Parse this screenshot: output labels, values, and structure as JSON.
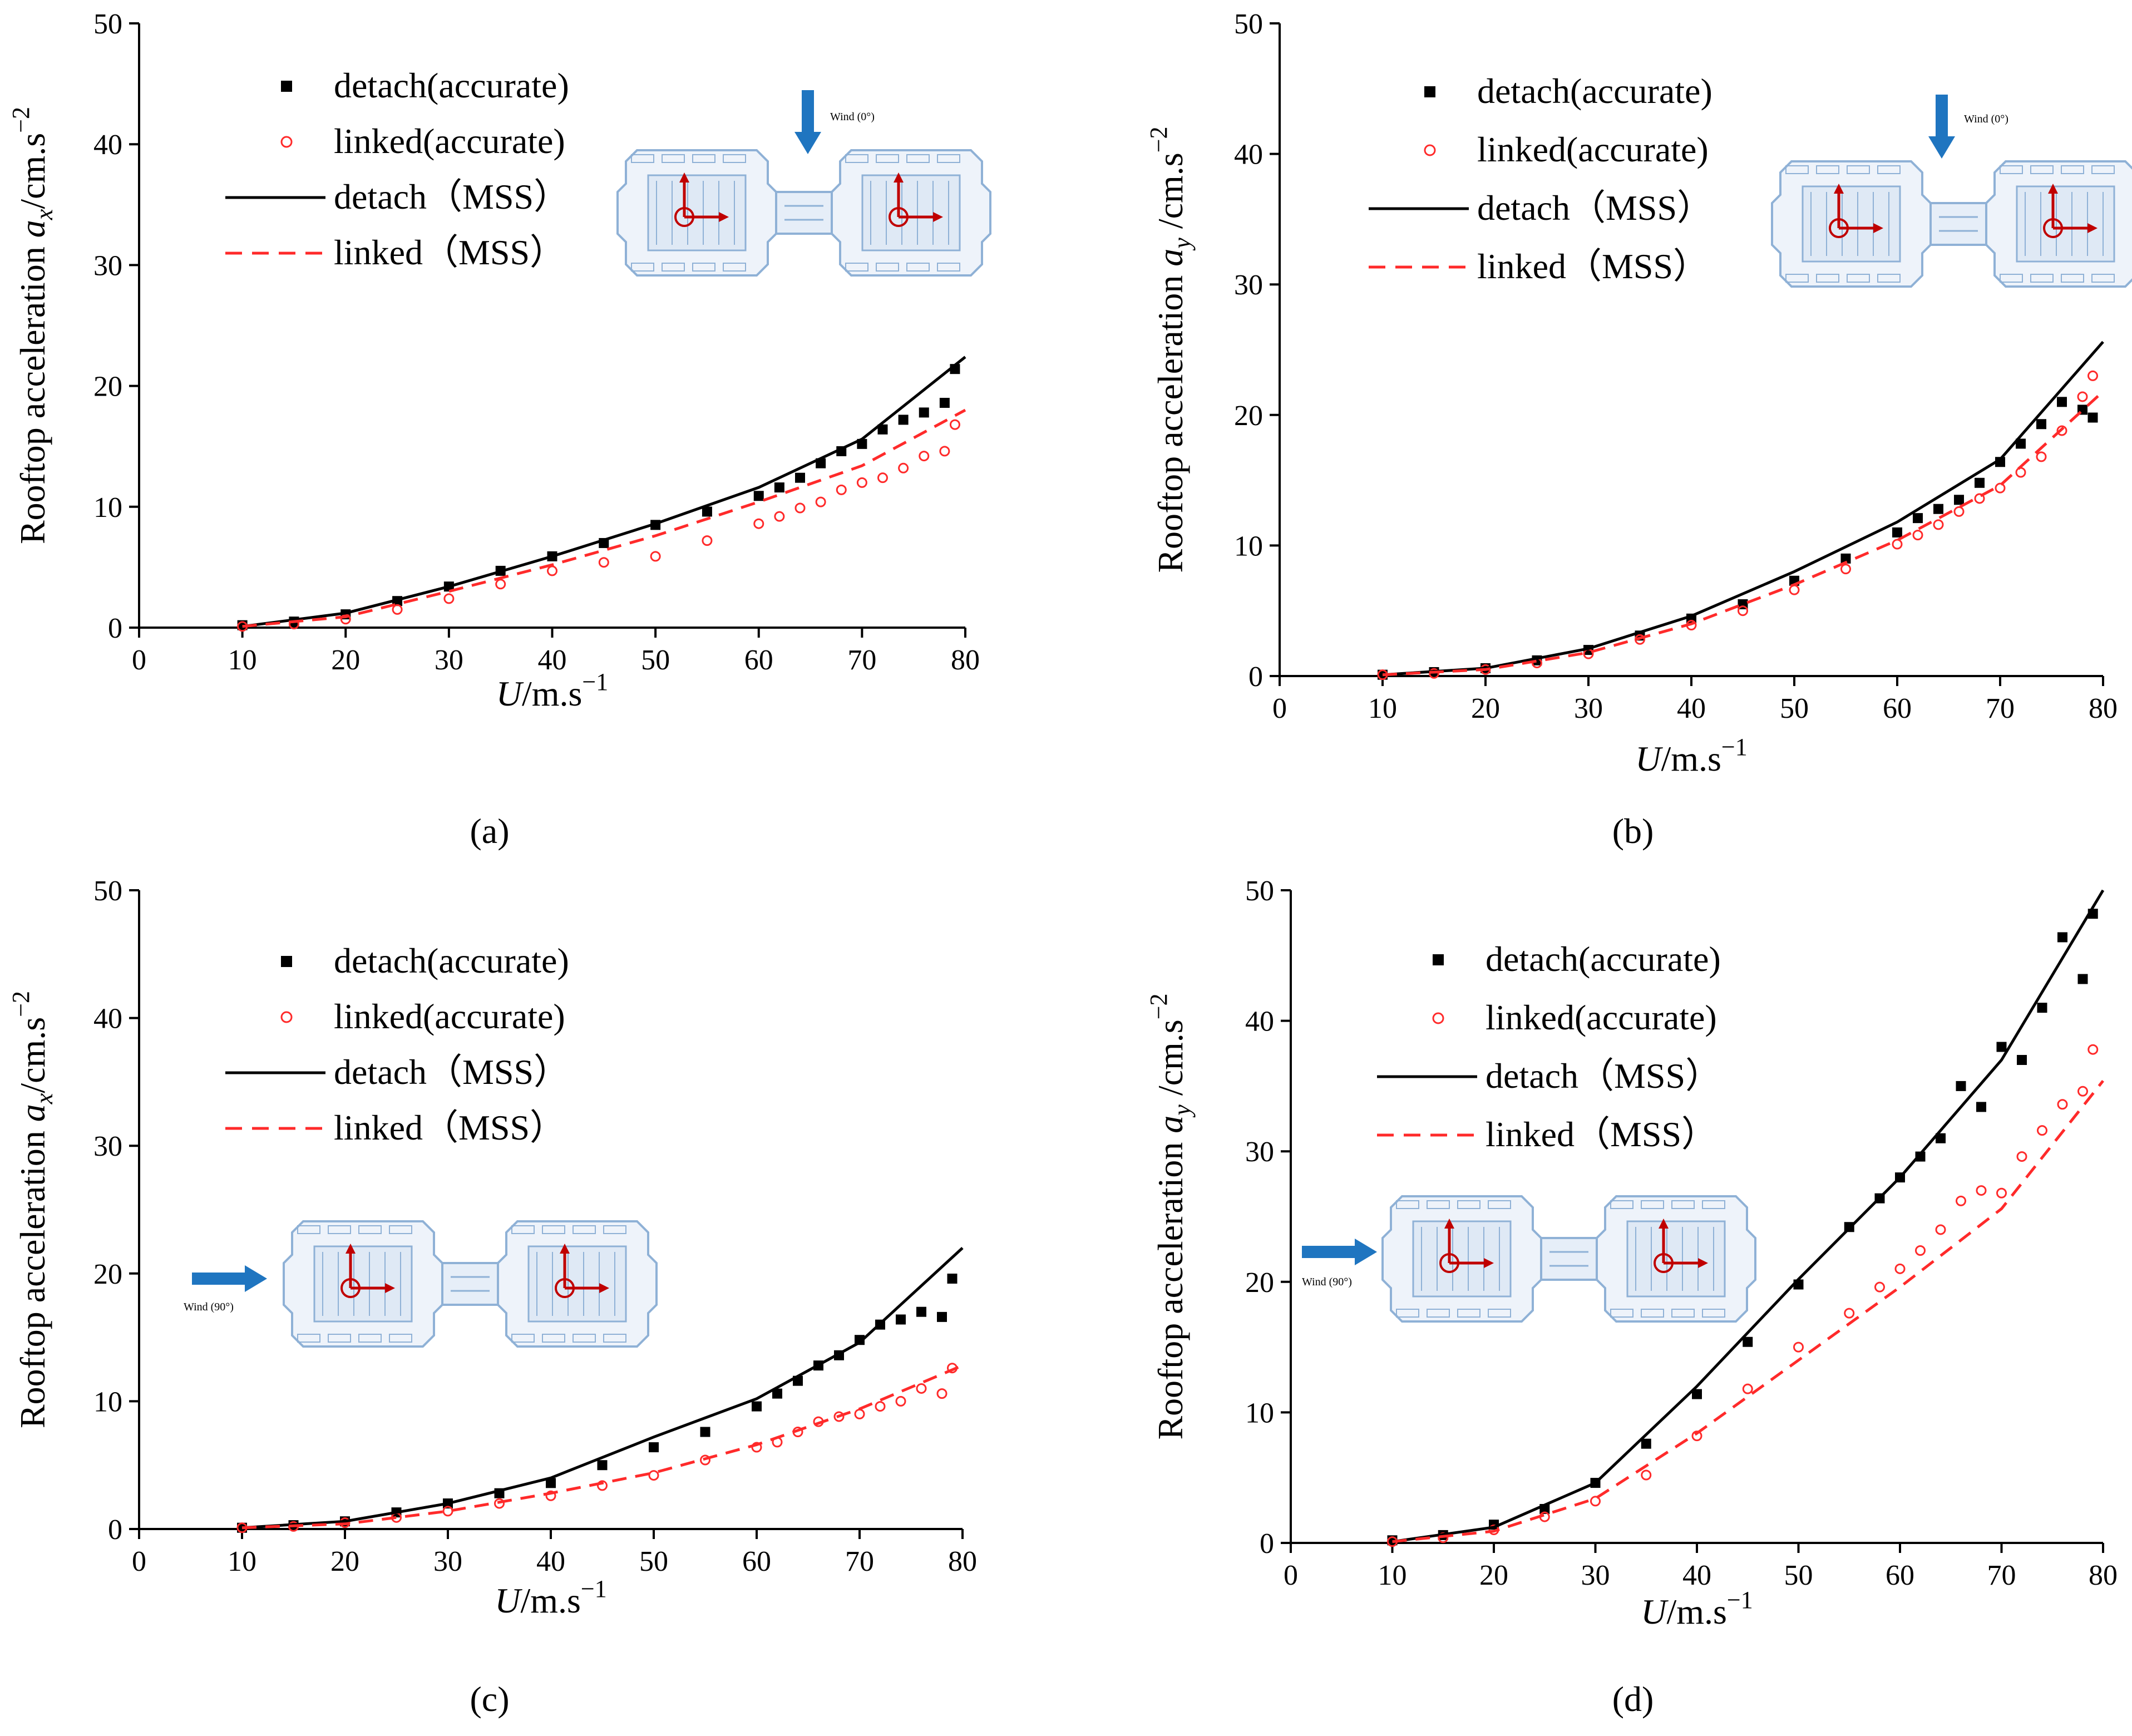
{
  "colors": {
    "detach": "#000000",
    "linked": "#ff2a2a",
    "wind_arrow": "#1f75c0",
    "plan": "#8fb1d6",
    "plan_axes": "#c00000"
  },
  "wind_labels": {
    "zero": "Wind (0°)",
    "ninety": "Wind (90°)"
  },
  "chart_data": [
    {
      "id": "a",
      "type": "scatter+line",
      "panel_label": "(a)",
      "ylabel_prefix": "Rooftop acceleration ",
      "ylabel_var": "a",
      "ylabel_sub": "x",
      "ylabel_unit": "/cm.s",
      "ylabel_exp": "−2",
      "xlabel_var": "U",
      "xlabel_unit": "/m.s",
      "xlabel_exp": "−1",
      "xlim": [
        0,
        80
      ],
      "ylim": [
        0,
        50
      ],
      "xticks": [
        "0",
        "10",
        "20",
        "30",
        "40",
        "50",
        "60",
        "70",
        "80"
      ],
      "yticks": [
        "0",
        "10",
        "20",
        "30",
        "40",
        "50"
      ],
      "legend": [
        "detach(accurate)",
        "linked(accurate)",
        "detach（MSS）",
        "linked（MSS）"
      ],
      "wind_direction": "0°",
      "series": [
        {
          "name": "detach(accurate)",
          "style": "square-marker",
          "color": "#000000",
          "x": [
            10,
            15,
            20,
            25,
            30,
            35,
            40,
            45,
            50,
            55,
            60,
            62,
            64,
            66,
            68,
            70,
            72,
            74,
            76,
            78,
            79
          ],
          "y": [
            0.2,
            0.5,
            1.1,
            2.2,
            3.4,
            4.7,
            5.9,
            7.0,
            8.5,
            9.6,
            10.9,
            11.6,
            12.4,
            13.6,
            14.6,
            15.2,
            16.4,
            17.2,
            17.8,
            18.6,
            21.4
          ]
        },
        {
          "name": "linked(accurate)",
          "style": "open-circle-marker",
          "color": "#ff2a2a",
          "x": [
            10,
            15,
            20,
            25,
            30,
            35,
            40,
            45,
            50,
            55,
            60,
            62,
            64,
            66,
            68,
            70,
            72,
            74,
            76,
            78,
            79
          ],
          "y": [
            0.1,
            0.3,
            0.7,
            1.5,
            2.4,
            3.6,
            4.7,
            5.4,
            5.9,
            7.2,
            8.6,
            9.2,
            9.9,
            10.4,
            11.4,
            12.0,
            12.4,
            13.2,
            14.2,
            14.6,
            16.8
          ]
        },
        {
          "name": "detach（MSS）",
          "style": "solid-line",
          "color": "#000000",
          "x": [
            10,
            20,
            30,
            40,
            50,
            60,
            70,
            80
          ],
          "y": [
            0.1,
            1.2,
            3.4,
            5.9,
            8.6,
            11.6,
            15.6,
            22.4
          ]
        },
        {
          "name": "linked（MSS）",
          "style": "dashed-line",
          "color": "#ff2a2a",
          "x": [
            10,
            20,
            30,
            40,
            50,
            60,
            70,
            80
          ],
          "y": [
            0.1,
            0.9,
            3.0,
            5.2,
            7.6,
            10.4,
            13.4,
            18.0
          ]
        }
      ]
    },
    {
      "id": "b",
      "type": "scatter+line",
      "panel_label": "(b)",
      "ylabel_prefix": "Rooftop acceleration ",
      "ylabel_var": "a",
      "ylabel_sub": "y",
      "ylabel_unit": " /cm.s",
      "ylabel_exp": "−2",
      "xlabel_var": "U",
      "xlabel_unit": "/m.s",
      "xlabel_exp": "−1",
      "xlim": [
        0,
        80
      ],
      "ylim": [
        0,
        50
      ],
      "xticks": [
        "0",
        "10",
        "20",
        "30",
        "40",
        "50",
        "60",
        "70",
        "80"
      ],
      "yticks": [
        "0",
        "10",
        "20",
        "30",
        "40",
        "50"
      ],
      "legend": [
        "detach(accurate)",
        "linked(accurate)",
        "detach（MSS）",
        "linked（MSS）"
      ],
      "wind_direction": "0°",
      "series": [
        {
          "name": "detach(accurate)",
          "style": "square-marker",
          "color": "#000000",
          "x": [
            10,
            15,
            20,
            25,
            30,
            35,
            40,
            45,
            50,
            55,
            60,
            62,
            64,
            66,
            68,
            70,
            72,
            74,
            76,
            78,
            79
          ],
          "y": [
            0.1,
            0.3,
            0.6,
            1.2,
            2.0,
            3.1,
            4.4,
            5.5,
            7.3,
            9.0,
            11.0,
            12.1,
            12.8,
            13.5,
            14.8,
            16.4,
            17.8,
            19.3,
            21.0,
            20.4,
            19.8
          ]
        },
        {
          "name": "linked(accurate)",
          "style": "open-circle-marker",
          "color": "#ff2a2a",
          "x": [
            10,
            15,
            20,
            25,
            30,
            35,
            40,
            45,
            50,
            55,
            60,
            62,
            64,
            66,
            68,
            70,
            72,
            74,
            76,
            78,
            79
          ],
          "y": [
            0.1,
            0.2,
            0.5,
            1.0,
            1.7,
            2.8,
            3.9,
            5.0,
            6.6,
            8.2,
            10.1,
            10.8,
            11.6,
            12.6,
            13.6,
            14.4,
            15.6,
            16.8,
            18.8,
            21.4,
            23.0
          ]
        },
        {
          "name": "detach（MSS）",
          "style": "solid-line",
          "color": "#000000",
          "x": [
            10,
            20,
            30,
            40,
            50,
            60,
            70,
            80
          ],
          "y": [
            0.1,
            0.6,
            2.1,
            4.6,
            8.0,
            11.8,
            16.6,
            25.6
          ]
        },
        {
          "name": "linked（MSS）",
          "style": "dashed-line",
          "color": "#ff2a2a",
          "x": [
            10,
            20,
            30,
            40,
            50,
            60,
            70,
            80
          ],
          "y": [
            0.1,
            0.5,
            1.8,
            4.0,
            7.0,
            10.4,
            14.6,
            21.8
          ]
        }
      ]
    },
    {
      "id": "c",
      "type": "scatter+line",
      "panel_label": "(c)",
      "ylabel_prefix": "Rooftop acceleration ",
      "ylabel_var": "a",
      "ylabel_sub": "x",
      "ylabel_unit": "/cm.s",
      "ylabel_exp": "−2",
      "xlabel_var": "U",
      "xlabel_unit": "/m.s",
      "xlabel_exp": "−1",
      "xlim": [
        0,
        80
      ],
      "ylim": [
        0,
        50
      ],
      "xticks": [
        "0",
        "10",
        "20",
        "30",
        "40",
        "50",
        "60",
        "70",
        "80"
      ],
      "yticks": [
        "0",
        "10",
        "20",
        "30",
        "40",
        "50"
      ],
      "legend": [
        "detach(accurate)",
        "linked(accurate)",
        "detach（MSS）",
        "linked（MSS）"
      ],
      "wind_direction": "90°",
      "series": [
        {
          "name": "detach(accurate)",
          "style": "square-marker",
          "color": "#000000",
          "x": [
            10,
            15,
            20,
            25,
            30,
            35,
            40,
            45,
            50,
            55,
            60,
            62,
            64,
            66,
            68,
            70,
            72,
            74,
            76,
            78,
            79
          ],
          "y": [
            0.1,
            0.3,
            0.6,
            1.3,
            2.0,
            2.8,
            3.6,
            5.0,
            6.4,
            7.6,
            9.6,
            10.6,
            11.6,
            12.8,
            13.6,
            14.8,
            16.0,
            16.4,
            17.0,
            16.6,
            19.6
          ]
        },
        {
          "name": "linked(accurate)",
          "style": "open-circle-marker",
          "color": "#ff2a2a",
          "x": [
            10,
            15,
            20,
            25,
            30,
            35,
            40,
            45,
            50,
            55,
            60,
            62,
            64,
            66,
            68,
            70,
            72,
            74,
            76,
            78,
            79
          ],
          "y": [
            0.1,
            0.2,
            0.5,
            0.9,
            1.4,
            2.0,
            2.6,
            3.4,
            4.2,
            5.4,
            6.4,
            6.8,
            7.6,
            8.4,
            8.8,
            9.0,
            9.6,
            10.0,
            11.0,
            10.6,
            12.6
          ]
        },
        {
          "name": "detach（MSS）",
          "style": "solid-line",
          "color": "#000000",
          "x": [
            10,
            20,
            30,
            40,
            50,
            60,
            70,
            80
          ],
          "y": [
            0.1,
            0.6,
            2.0,
            4.0,
            7.2,
            10.2,
            14.6,
            22.0
          ]
        },
        {
          "name": "linked（MSS）",
          "style": "dashed-line",
          "color": "#ff2a2a",
          "x": [
            10,
            20,
            30,
            40,
            50,
            60,
            70,
            80
          ],
          "y": [
            0.1,
            0.4,
            1.4,
            2.8,
            4.4,
            6.6,
            9.4,
            12.8
          ]
        }
      ]
    },
    {
      "id": "d",
      "type": "scatter+line",
      "panel_label": "(d)",
      "ylabel_prefix": "Rooftop acceleration ",
      "ylabel_var": "a",
      "ylabel_sub": "y",
      "ylabel_unit": " /cm.s",
      "ylabel_exp": "−2",
      "xlabel_var": "U",
      "xlabel_unit": "/m.s",
      "xlabel_exp": "−1",
      "xlim": [
        0,
        80
      ],
      "ylim": [
        0,
        50
      ],
      "xticks": [
        "0",
        "10",
        "20",
        "30",
        "40",
        "50",
        "60",
        "70",
        "80"
      ],
      "yticks": [
        "0",
        "10",
        "20",
        "30",
        "40",
        "50"
      ],
      "legend": [
        "detach(accurate)",
        "linked(accurate)",
        "detach（MSS）",
        "linked（MSS）"
      ],
      "wind_direction": "90°",
      "series": [
        {
          "name": "detach(accurate)",
          "style": "square-marker",
          "color": "#000000",
          "x": [
            10,
            15,
            20,
            25,
            30,
            35,
            40,
            45,
            50,
            55,
            58,
            60,
            62,
            64,
            66,
            68,
            70,
            72,
            74,
            76,
            78,
            79
          ],
          "y": [
            0.2,
            0.6,
            1.4,
            2.6,
            4.6,
            7.6,
            11.4,
            15.4,
            19.8,
            24.2,
            26.4,
            28.0,
            29.6,
            31.0,
            35.0,
            33.4,
            38.0,
            37.0,
            41.0,
            46.4,
            43.2,
            48.2
          ]
        },
        {
          "name": "linked(accurate)",
          "style": "open-circle-marker",
          "color": "#ff2a2a",
          "x": [
            10,
            15,
            20,
            25,
            30,
            35,
            40,
            45,
            50,
            55,
            58,
            60,
            62,
            64,
            66,
            68,
            70,
            72,
            74,
            76,
            78,
            79
          ],
          "y": [
            0.1,
            0.4,
            1.0,
            2.0,
            3.2,
            5.2,
            8.2,
            11.8,
            15.0,
            17.6,
            19.6,
            21.0,
            22.4,
            24.0,
            26.2,
            27.0,
            26.8,
            29.6,
            31.6,
            33.6,
            34.6,
            37.8
          ]
        },
        {
          "name": "detach（MSS）",
          "style": "solid-line",
          "color": "#000000",
          "x": [
            10,
            20,
            30,
            40,
            50,
            60,
            70,
            80
          ],
          "y": [
            0.1,
            1.2,
            4.6,
            12.0,
            20.2,
            28.0,
            37.0,
            50.0
          ]
        },
        {
          "name": "linked（MSS）",
          "style": "dashed-line",
          "color": "#ff2a2a",
          "x": [
            10,
            20,
            30,
            40,
            50,
            60,
            70,
            80
          ],
          "y": [
            0.1,
            0.9,
            3.4,
            8.4,
            14.0,
            19.6,
            25.6,
            35.4
          ]
        }
      ]
    }
  ]
}
